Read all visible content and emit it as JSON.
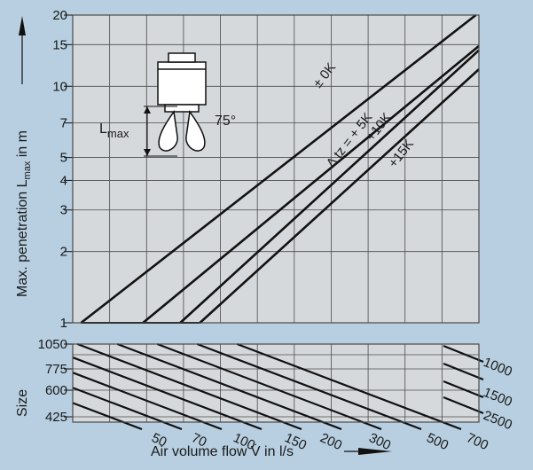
{
  "colors": {
    "background": "#b7cfe0",
    "plot_area": "#d6d9dc",
    "grid": "#4a4a4a",
    "line": "#111111"
  },
  "chart_data": [
    {
      "type": "line",
      "title": "",
      "xlabel": "Air volume flow V̇ in l/s",
      "ylabel": "Max. penetration L",
      "ylabel_sub": "max",
      "ylabel_unit": " in m",
      "x_scale": "log",
      "y_scale": "log",
      "xlim": [
        28,
        800
      ],
      "ylim": [
        1,
        20
      ],
      "grid": true,
      "y_ticks": [
        1,
        2,
        3,
        4,
        5,
        7,
        10,
        15,
        20
      ],
      "series": [
        {
          "name": "± 0K",
          "points": [
            [
              30,
              1
            ],
            [
              780,
              20
            ]
          ]
        },
        {
          "name": "Δ tz = + 5K",
          "points": [
            [
              50,
              1
            ],
            [
              800,
              14.8
            ]
          ]
        },
        {
          "name": "+10K",
          "points": [
            [
              68,
              1
            ],
            [
              800,
              14.2
            ]
          ]
        },
        {
          "name": "+15K",
          "points": [
            [
              80,
              1
            ],
            [
              800,
              11.8
            ]
          ]
        }
      ],
      "annotation": {
        "angle_label": "75°",
        "dimension_label": "L",
        "dimension_sub": "max"
      }
    },
    {
      "type": "line",
      "title": "",
      "xlabel": "Air volume flow V̇ in l/s",
      "ylabel": "Size",
      "y_ticks": [
        425,
        600,
        775,
        1050
      ],
      "x_flow_labels": [
        50,
        70,
        100,
        150,
        200,
        300,
        500,
        700
      ],
      "sizes": [
        425,
        600,
        775,
        1000,
        1050,
        1500,
        2500
      ],
      "size_labels": [
        "1000",
        "1500",
        "2500"
      ],
      "grid": true
    }
  ]
}
